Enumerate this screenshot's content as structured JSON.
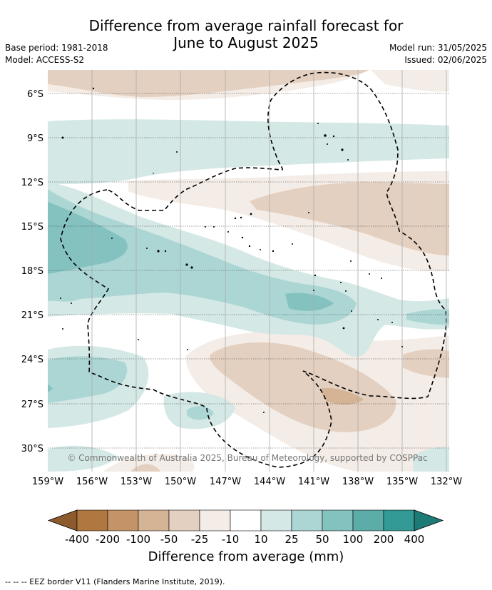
{
  "title": {
    "line1": "Difference from average rainfall forecast for",
    "line2": "June to August 2025"
  },
  "meta": {
    "base_period": "Base period: 1981-2018",
    "model": "Model: ACCESS-S2",
    "model_run": "Model run: 31/05/2025",
    "issued": "Issued: 02/06/2025"
  },
  "map": {
    "lat_labels": [
      "6°S",
      "9°S",
      "12°S",
      "15°S",
      "18°S",
      "21°S",
      "24°S",
      "27°S",
      "30°S"
    ],
    "lon_labels": [
      "159°W",
      "156°W",
      "153°W",
      "150°W",
      "147°W",
      "144°W",
      "141°W",
      "138°W",
      "135°W",
      "132°W"
    ],
    "copyright": "© Commonwealth of Australia 2025, Bureau of Meteorology, supported by COSPPac",
    "gridlines": true
  },
  "legend": {
    "title": "Difference from average (mm)",
    "tick_labels": [
      "-400",
      "-200",
      "-100",
      "-50",
      "-25",
      "-10",
      "10",
      "25",
      "50",
      "100",
      "200",
      "400"
    ],
    "colors": [
      "#b07840",
      "#c49468",
      "#d4b494",
      "#e4d0c0",
      "#f4ece6",
      "#ffffff",
      "#d4e8e6",
      "#acd6d4",
      "#84c2c0",
      "#5cacaa",
      "#349a96"
    ],
    "extend_low_color": "#8c5a2c",
    "extend_high_color": "#1e7a76"
  },
  "footnote": "--  --  -- EEZ border V11 (Flanders Marine Institute, 2019)."
}
